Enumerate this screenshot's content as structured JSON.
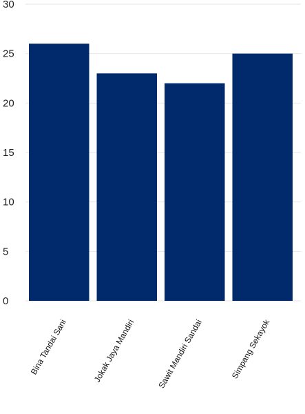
{
  "chart_data": {
    "type": "bar",
    "categories": [
      "Bina Tandai Sani",
      "Jokak Jaya Mandiri",
      "Sawit Mandiri Sandai",
      "Simpang Sekayok"
    ],
    "values": [
      26,
      23,
      22,
      25
    ],
    "title": "",
    "xlabel": "",
    "ylabel": "",
    "ylim": [
      0,
      30
    ],
    "yticks": [
      0,
      5,
      10,
      15,
      20,
      25,
      30
    ],
    "grid": true,
    "legend": "none",
    "bar_color": "#002a6b"
  }
}
